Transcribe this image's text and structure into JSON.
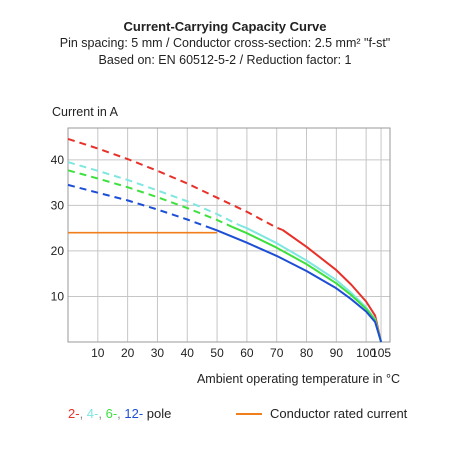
{
  "chart_data": {
    "type": "line",
    "title": "Current-Carrying Capacity Curve",
    "subtitle_lines": [
      "Pin spacing: 5 mm / Conductor cross-section: 2.5 mm² \"f-st\"",
      "Based on: EN 60512-5-2 / Reduction factor: 1"
    ],
    "ylabel": "Current in A",
    "xlabel": "Ambient operating temperature in °C",
    "xlim": [
      0,
      108
    ],
    "ylim": [
      0,
      47
    ],
    "xticks": [
      10,
      20,
      30,
      40,
      50,
      60,
      70,
      80,
      90,
      100,
      105
    ],
    "yticks": [
      10,
      20,
      30,
      40
    ],
    "grid": true,
    "series": [
      {
        "name": "2-",
        "color": "#e8312a",
        "dashed_until": 72,
        "x": [
          0,
          10,
          20,
          30,
          40,
          50,
          60,
          70,
          72,
          80,
          90,
          95,
          100,
          103,
          105
        ],
        "y": [
          44.6,
          42.5,
          40.2,
          37.6,
          34.8,
          31.7,
          28.6,
          25.1,
          24.6,
          20.9,
          15.8,
          12.6,
          8.9,
          5.8,
          0
        ]
      },
      {
        "name": "4-",
        "color": "#7fe6e0",
        "dashed_until": 57,
        "x": [
          0,
          10,
          20,
          30,
          40,
          50,
          57,
          60,
          70,
          80,
          90,
          95,
          100,
          103,
          105
        ],
        "y": [
          39.5,
          37.6,
          35.6,
          33.3,
          30.9,
          28.1,
          25.8,
          25.0,
          21.7,
          17.9,
          13.6,
          10.8,
          7.6,
          5.0,
          0
        ]
      },
      {
        "name": "6-",
        "color": "#3ee03e",
        "dashed_until": 55,
        "x": [
          0,
          10,
          20,
          30,
          40,
          50,
          55,
          60,
          70,
          80,
          90,
          95,
          100,
          103,
          105
        ],
        "y": [
          37.7,
          35.9,
          34.0,
          31.8,
          29.4,
          26.8,
          25.3,
          23.9,
          20.7,
          17.1,
          12.9,
          10.3,
          7.3,
          4.8,
          0
        ]
      },
      {
        "name": "12-",
        "color": "#1d4fd6",
        "dashed_until": 48,
        "x": [
          0,
          10,
          20,
          30,
          40,
          48,
          50,
          60,
          70,
          80,
          90,
          95,
          100,
          103,
          105
        ],
        "y": [
          34.5,
          32.8,
          31.1,
          29.1,
          26.9,
          25.0,
          24.5,
          21.8,
          18.9,
          15.6,
          11.8,
          9.4,
          6.7,
          4.4,
          0
        ]
      }
    ],
    "reference_line": {
      "name": "Conductor rated current",
      "color": "#f07e1b",
      "y": 24,
      "x": [
        0,
        50
      ]
    }
  },
  "legend": {
    "entries": [
      {
        "label": "2-",
        "color": "#e8312a"
      },
      {
        "label": ", ",
        "color": "#888888"
      },
      {
        "label": "4-",
        "color": "#7fe6e0"
      },
      {
        "label": ", ",
        "color": "#888888"
      },
      {
        "label": "6-",
        "color": "#3ee03e"
      },
      {
        "label": ", ",
        "color": "#888888"
      },
      {
        "label": "12-",
        "color": "#1d4fd6"
      }
    ],
    "suffix": " pole",
    "rated_label": "Conductor rated current"
  }
}
